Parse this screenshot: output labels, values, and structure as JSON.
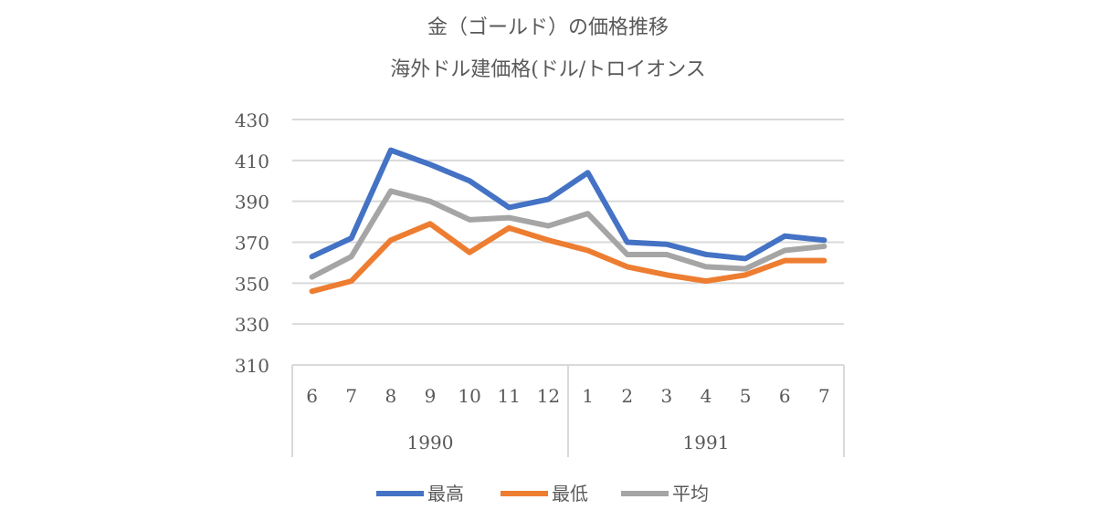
{
  "chart_data": {
    "type": "line",
    "title": "金（ゴールド）の価格推移",
    "subtitle": "海外ドル建価格(ドル/トロイオンス",
    "categories": [
      "6",
      "7",
      "8",
      "9",
      "10",
      "11",
      "12",
      "1",
      "2",
      "3",
      "4",
      "5",
      "6",
      "7"
    ],
    "groups": [
      {
        "label": "1990",
        "count": 7
      },
      {
        "label": "1991",
        "count": 7
      }
    ],
    "ylim": [
      310,
      430
    ],
    "yticks": [
      "310",
      "330",
      "350",
      "370",
      "390",
      "410",
      "430"
    ],
    "grid": true,
    "legend_position": "bottom",
    "series": [
      {
        "name": "最高",
        "color": "#4472C4",
        "values": [
          363,
          372,
          415,
          408,
          400,
          387,
          391,
          404,
          370,
          369,
          364,
          362,
          373,
          371
        ]
      },
      {
        "name": "最低",
        "color": "#ED7D31",
        "values": [
          346,
          351,
          371,
          379,
          365,
          377,
          371,
          366,
          358,
          354,
          351,
          354,
          361,
          361
        ]
      },
      {
        "name": "平均",
        "color": "#A5A5A5",
        "values": [
          353,
          363,
          395,
          390,
          381,
          382,
          378,
          384,
          364,
          364,
          358,
          357,
          366,
          368
        ]
      }
    ]
  }
}
